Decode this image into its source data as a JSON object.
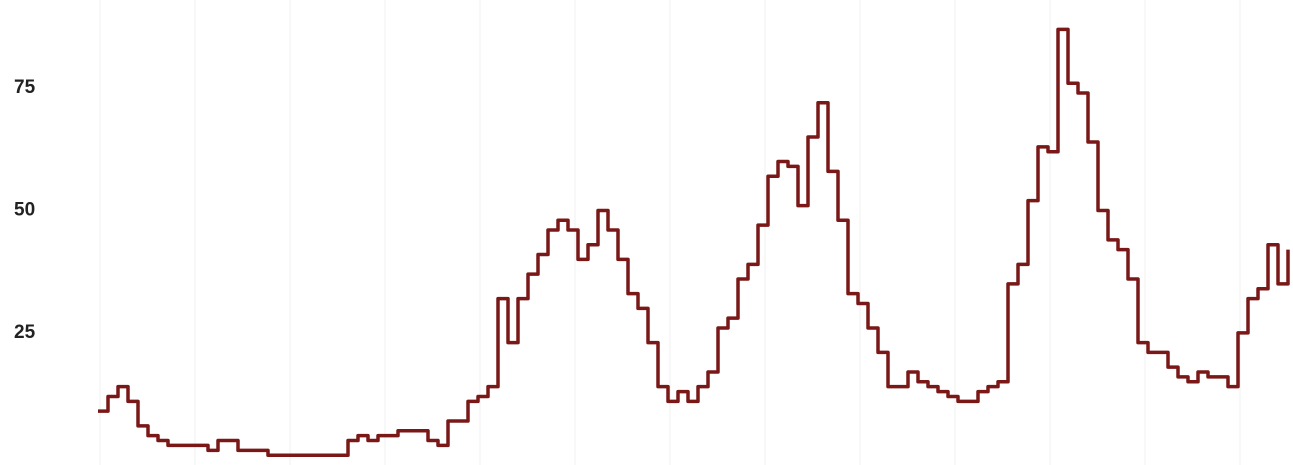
{
  "chart_data": {
    "type": "line",
    "color": "#7a1818",
    "ylim": [
      -2,
      93
    ],
    "yticks": [
      25,
      50,
      75
    ],
    "grid": false,
    "values": [
      9,
      12,
      14,
      11,
      6,
      4,
      3,
      2,
      2,
      2,
      2,
      1,
      3,
      3,
      1,
      1,
      1,
      0,
      0,
      0,
      0,
      0,
      0,
      0,
      0,
      3,
      4,
      3,
      4,
      4,
      5,
      5,
      5,
      3,
      2,
      7,
      7,
      11,
      12,
      14,
      32,
      23,
      32,
      37,
      41,
      46,
      48,
      46,
      40,
      43,
      50,
      46,
      40,
      33,
      30,
      23,
      14,
      11,
      13,
      11,
      14,
      17,
      26,
      28,
      36,
      39,
      47,
      57,
      60,
      59,
      51,
      65,
      72,
      58,
      48,
      33,
      31,
      26,
      21,
      14,
      14,
      17,
      15,
      14,
      13,
      12,
      11,
      11,
      13,
      14,
      15,
      35,
      39,
      52,
      63,
      62,
      87,
      76,
      74,
      64,
      50,
      44,
      42,
      36,
      23,
      21,
      21,
      18,
      16,
      15,
      17,
      16,
      16,
      14,
      25,
      32,
      34,
      43,
      35,
      42
    ]
  }
}
